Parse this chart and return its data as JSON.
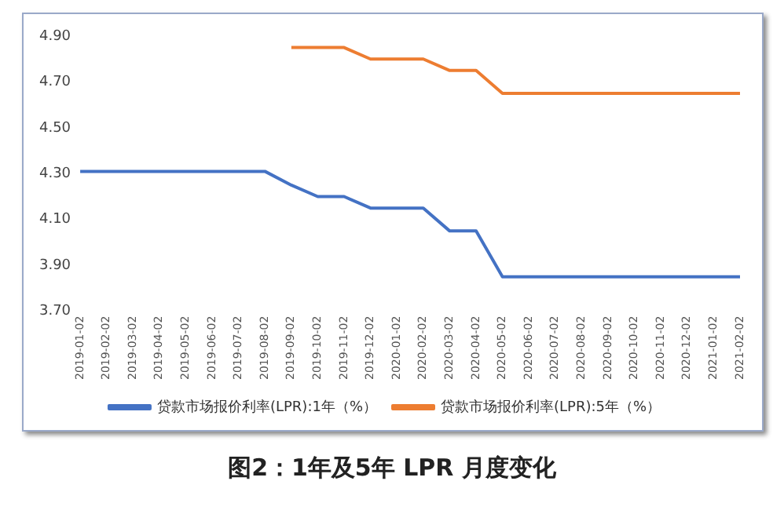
{
  "chart_data": {
    "type": "line",
    "title": "图2：1年及5年 LPR 月度变化",
    "categories": [
      "2019-01-02",
      "2019-02-02",
      "2019-03-02",
      "2019-04-02",
      "2019-05-02",
      "2019-06-02",
      "2019-07-02",
      "2019-08-02",
      "2019-09-02",
      "2019-10-02",
      "2019-11-02",
      "2019-12-02",
      "2020-01-02",
      "2020-02-02",
      "2020-03-02",
      "2020-04-02",
      "2020-05-02",
      "2020-06-02",
      "2020-07-02",
      "2020-08-02",
      "2020-09-02",
      "2020-10-02",
      "2020-11-02",
      "2020-12-02",
      "2021-01-02",
      "2021-02-02"
    ],
    "series": [
      {
        "name": "贷款市场报价利率(LPR):1年（%）",
        "color": "#4472c4",
        "values": [
          4.31,
          4.31,
          4.31,
          4.31,
          4.31,
          4.31,
          4.31,
          4.31,
          4.25,
          4.2,
          4.2,
          4.15,
          4.15,
          4.15,
          4.05,
          4.05,
          3.85,
          3.85,
          3.85,
          3.85,
          3.85,
          3.85,
          3.85,
          3.85,
          3.85,
          3.85
        ]
      },
      {
        "name": "贷款市场报价利率(LPR):5年（%）",
        "color": "#ed7d31",
        "values": [
          null,
          null,
          null,
          null,
          null,
          null,
          null,
          null,
          4.85,
          4.85,
          4.85,
          4.8,
          4.8,
          4.8,
          4.75,
          4.75,
          4.65,
          4.65,
          4.65,
          4.65,
          4.65,
          4.65,
          4.65,
          4.65,
          4.65,
          4.65
        ]
      }
    ],
    "ylim": [
      3.7,
      4.9
    ],
    "yticks": [
      {
        "value": 3.7,
        "label": "3.70"
      },
      {
        "value": 3.9,
        "label": "3.90"
      },
      {
        "value": 4.1,
        "label": "4.10"
      },
      {
        "value": 4.3,
        "label": "4.30"
      },
      {
        "value": 4.5,
        "label": "4.50"
      },
      {
        "value": 4.7,
        "label": "4.70"
      },
      {
        "value": 4.9,
        "label": "4.90"
      }
    ],
    "grid": false,
    "legend": "bottom",
    "marker": "none",
    "line_style": "solid"
  }
}
